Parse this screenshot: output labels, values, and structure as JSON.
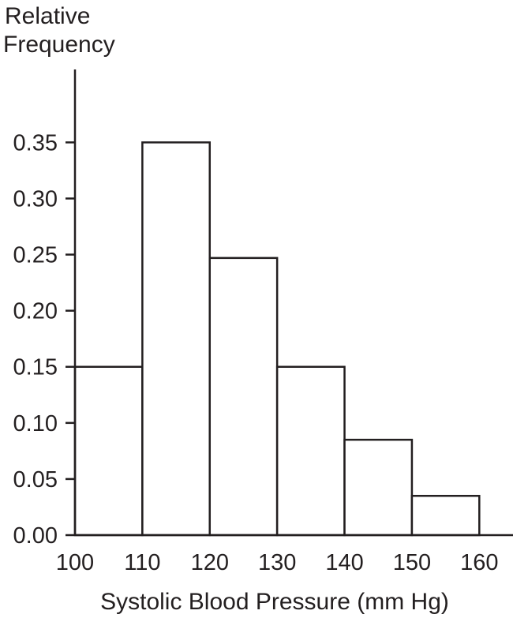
{
  "chart_data": {
    "type": "bar",
    "ylabel_lines": [
      "Relative",
      "Frequency"
    ],
    "xlabel": "Systolic Blood Pressure (mm Hg)",
    "bins": [
      [
        100,
        110
      ],
      [
        110,
        120
      ],
      [
        120,
        130
      ],
      [
        130,
        140
      ],
      [
        140,
        150
      ],
      [
        150,
        160
      ]
    ],
    "values": [
      0.15,
      0.35,
      0.247,
      0.15,
      0.085,
      0.035
    ],
    "x_ticks": [
      "100",
      "110",
      "120",
      "130",
      "140",
      "150",
      "160"
    ],
    "y_ticks": [
      "0.00",
      "0.05",
      "0.10",
      "0.15",
      "0.20",
      "0.25",
      "0.30",
      "0.35"
    ],
    "xlim": [
      100,
      165
    ],
    "ylim": [
      0,
      0.415
    ],
    "grid": false,
    "colors": {
      "stroke": "#231f20",
      "fill": "#ffffff"
    }
  }
}
